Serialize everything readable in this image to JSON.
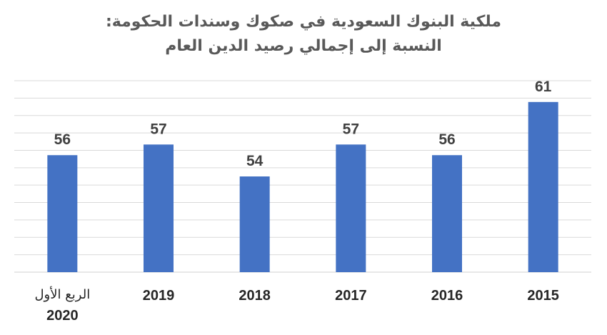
{
  "chart_data": {
    "type": "bar",
    "title": "ملكية البنوك السعودية في صكوك وسندات الحكومة:",
    "subtitle": "النسبة إلى إجمالي رصيد الدين العام",
    "categories": [
      {
        "line1": "الربع الأول",
        "line2": "2020"
      },
      {
        "line1": "2019",
        "line2": ""
      },
      {
        "line1": "2018",
        "line2": ""
      },
      {
        "line1": "2017",
        "line2": ""
      },
      {
        "line1": "2016",
        "line2": ""
      },
      {
        "line1": "2015",
        "line2": ""
      }
    ],
    "values": [
      56,
      57,
      54,
      57,
      56,
      61
    ],
    "data_labels": [
      "56",
      "57",
      "54",
      "57",
      "56",
      "61"
    ],
    "ylim": [
      45,
      63
    ],
    "gridlines": true,
    "y_axis_labels_shown": false,
    "legend": "none",
    "bar_color": "#4472C4",
    "gridline_color": "#D9D9D9"
  }
}
